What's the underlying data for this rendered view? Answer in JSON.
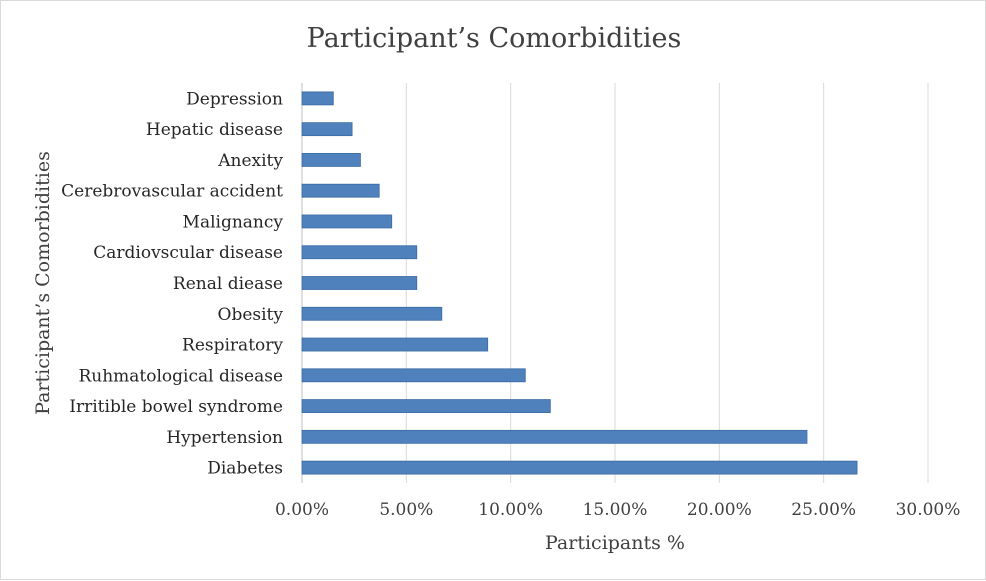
{
  "chart_data": {
    "type": "bar",
    "orientation": "horizontal",
    "title": "Participant’s Comorbidities",
    "xlabel": "Participants %",
    "ylabel": "Participant’s Comorbidities",
    "xlim": [
      0,
      30
    ],
    "x_ticks": [
      0,
      5,
      10,
      15,
      20,
      25,
      30
    ],
    "x_tick_labels": [
      "0.00%",
      "5.00%",
      "10.00%",
      "15.00%",
      "20.00%",
      "25.00%",
      "30.00%"
    ],
    "grid": true,
    "bar_color": "#4f81bd",
    "bar_edge_color": "#3a6aa4",
    "categories": [
      "Depression",
      "Hepatic disease",
      "Anexity",
      "Cerebrovascular accident",
      "Malignancy",
      "Cardiovscular disease",
      "Renal diease",
      "Obesity",
      "Respiratory",
      "Ruhmatological disease",
      "Irritible bowel syndrome",
      "Hypertension",
      "Diabetes"
    ],
    "values": [
      1.5,
      2.4,
      2.8,
      3.7,
      4.3,
      5.5,
      5.5,
      6.7,
      8.9,
      10.7,
      11.9,
      24.2,
      26.6
    ]
  }
}
